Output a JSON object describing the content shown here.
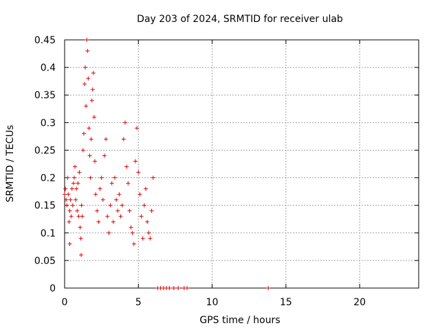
{
  "chart_data": {
    "type": "scatter",
    "title": "Day 203 of 2024, SRMTID for receiver ulab",
    "xlabel": "GPS time / hours",
    "ylabel": "SRMTID / TECUs",
    "xlim": [
      0,
      24
    ],
    "ylim": [
      0,
      0.45
    ],
    "xticks": [
      0,
      5,
      10,
      15,
      20
    ],
    "xtick_labels": [
      "0",
      "5",
      "10",
      "15",
      "20"
    ],
    "yticks": [
      0,
      0.05,
      0.1,
      0.15,
      0.2,
      0.25,
      0.3,
      0.35,
      0.4,
      0.45
    ],
    "ytick_labels": [
      "0",
      "0.05",
      "0.1",
      "0.15",
      "0.2",
      "0.25",
      "0.3",
      "0.35",
      "0.4",
      "0.45"
    ],
    "grid": true,
    "marker": "+",
    "color": "#dd0000",
    "series": [
      {
        "name": "SRMTID",
        "points": [
          [
            0.0,
            0.17
          ],
          [
            0.05,
            0.18
          ],
          [
            0.1,
            0.16
          ],
          [
            0.15,
            0.15
          ],
          [
            0.2,
            0.2
          ],
          [
            0.25,
            0.17
          ],
          [
            0.3,
            0.12
          ],
          [
            0.35,
            0.14
          ],
          [
            0.35,
            0.08
          ],
          [
            0.4,
            0.16
          ],
          [
            0.45,
            0.13
          ],
          [
            0.5,
            0.18
          ],
          [
            0.55,
            0.15
          ],
          [
            0.6,
            0.19
          ],
          [
            0.65,
            0.2
          ],
          [
            0.7,
            0.22
          ],
          [
            0.75,
            0.16
          ],
          [
            0.8,
            0.18
          ],
          [
            0.85,
            0.14
          ],
          [
            0.9,
            0.19
          ],
          [
            0.95,
            0.13
          ],
          [
            1.0,
            0.21
          ],
          [
            1.05,
            0.11
          ],
          [
            1.1,
            0.09
          ],
          [
            1.12,
            0.06
          ],
          [
            1.15,
            0.15
          ],
          [
            1.2,
            0.13
          ],
          [
            1.25,
            0.25
          ],
          [
            1.3,
            0.28
          ],
          [
            1.35,
            0.37
          ],
          [
            1.4,
            0.4
          ],
          [
            1.45,
            0.33
          ],
          [
            1.5,
            0.45
          ],
          [
            1.55,
            0.43
          ],
          [
            1.6,
            0.38
          ],
          [
            1.65,
            0.29
          ],
          [
            1.7,
            0.24
          ],
          [
            1.75,
            0.2
          ],
          [
            1.8,
            0.27
          ],
          [
            1.85,
            0.34
          ],
          [
            1.9,
            0.36
          ],
          [
            1.95,
            0.39
          ],
          [
            2.0,
            0.31
          ],
          [
            2.05,
            0.23
          ],
          [
            2.1,
            0.17
          ],
          [
            2.2,
            0.14
          ],
          [
            2.3,
            0.12
          ],
          [
            2.4,
            0.18
          ],
          [
            2.5,
            0.2
          ],
          [
            2.6,
            0.16
          ],
          [
            2.7,
            0.24
          ],
          [
            2.8,
            0.27
          ],
          [
            2.9,
            0.13
          ],
          [
            3.0,
            0.1
          ],
          [
            3.1,
            0.15
          ],
          [
            3.2,
            0.19
          ],
          [
            3.3,
            0.12
          ],
          [
            3.4,
            0.2
          ],
          [
            3.5,
            0.16
          ],
          [
            3.6,
            0.14
          ],
          [
            3.7,
            0.17
          ],
          [
            3.8,
            0.13
          ],
          [
            3.9,
            0.15
          ],
          [
            4.0,
            0.27
          ],
          [
            4.1,
            0.3
          ],
          [
            4.2,
            0.22
          ],
          [
            4.3,
            0.19
          ],
          [
            4.4,
            0.14
          ],
          [
            4.5,
            0.11
          ],
          [
            4.6,
            0.1
          ],
          [
            4.7,
            0.08
          ],
          [
            4.8,
            0.23
          ],
          [
            4.9,
            0.29
          ],
          [
            5.0,
            0.21
          ],
          [
            5.1,
            0.17
          ],
          [
            5.2,
            0.13
          ],
          [
            5.3,
            0.09
          ],
          [
            5.4,
            0.15
          ],
          [
            5.5,
            0.18
          ],
          [
            5.6,
            0.12
          ],
          [
            5.7,
            0.1
          ],
          [
            5.8,
            0.09
          ],
          [
            5.9,
            0.14
          ],
          [
            6.0,
            0.2
          ],
          [
            6.3,
            0
          ],
          [
            6.5,
            0
          ],
          [
            6.7,
            0
          ],
          [
            6.9,
            0
          ],
          [
            7.1,
            0
          ],
          [
            7.4,
            0
          ],
          [
            7.7,
            0
          ],
          [
            8.1,
            0
          ],
          [
            8.3,
            0
          ],
          [
            13.8,
            0
          ]
        ]
      }
    ]
  }
}
